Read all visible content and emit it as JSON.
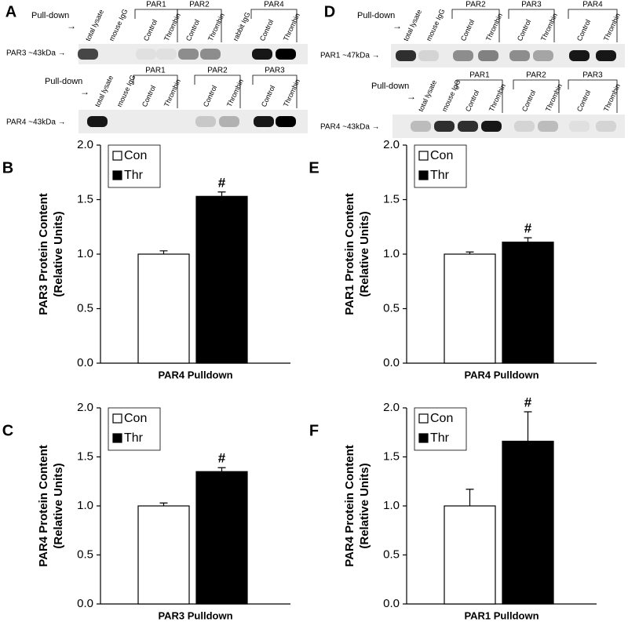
{
  "blots": [
    {
      "label": "A",
      "rows": [
        {
          "pulldown": "Pull-down",
          "arrow": "→",
          "marker": "PAR3 ~43kDa →",
          "columns": [
            "total lysate",
            "mouse IgG",
            {
              "group": "PAR1",
              "lanes": [
                "Control",
                "Thrombin"
              ]
            },
            {
              "group": "PAR2",
              "lanes": [
                "Control",
                "Thrombin"
              ]
            },
            "rabbit IgG",
            {
              "group": "PAR4",
              "lanes": [
                "Control",
                "Thrombin"
              ]
            }
          ]
        },
        {
          "pulldown": "Pull-down",
          "arrow": "→",
          "marker": "PAR4 ~43kDa →",
          "columns": [
            "total lysate",
            "mouse IgG",
            {
              "group": "PAR1",
              "lanes": [
                "Control",
                "Thrombin"
              ]
            },
            {
              "group": "PAR2",
              "lanes": [
                "Control",
                "Thrombin"
              ]
            },
            {
              "group": "PAR3",
              "lanes": [
                "Control",
                "Thrombin"
              ]
            }
          ]
        }
      ]
    },
    {
      "label": "D",
      "rows": [
        {
          "pulldown": "Pull-down",
          "arrow": "→",
          "marker": "PAR1 ~47kDa →",
          "columns": [
            "total lysate",
            "mouse IgG",
            {
              "group": "PAR2",
              "lanes": [
                "Control",
                "Thrombin"
              ]
            },
            {
              "group": "PAR3",
              "lanes": [
                "Control",
                "Thrombin"
              ]
            },
            {
              "group": "PAR4",
              "lanes": [
                "Control",
                "Thrombin"
              ]
            }
          ]
        },
        {
          "pulldown": "Pull-down",
          "arrow": "→",
          "marker": "PAR4 ~43kDa →",
          "columns": [
            "total lysate",
            "mouse IgG",
            {
              "group": "PAR1",
              "lanes": [
                "Control",
                "Thrombin"
              ]
            },
            {
              "group": "PAR2",
              "lanes": [
                "Control",
                "Thrombin"
              ]
            },
            {
              "group": "PAR3",
              "lanes": [
                "Control",
                "Thrombin"
              ]
            }
          ]
        }
      ]
    }
  ],
  "chart_data": [
    {
      "type": "bar",
      "label": "B",
      "ylabel": [
        "PAR3 Protein Content",
        "(Relative Units)"
      ],
      "xlabel": "PAR4 Pulldown",
      "annotation": "#",
      "ylim": [
        0,
        2
      ],
      "yticks": [
        {
          "value": 0,
          "label": "0.0"
        },
        {
          "value": 0.5,
          "label": "0.5"
        },
        {
          "value": 1,
          "label": "1.0"
        },
        {
          "value": 1.5,
          "label": "1.5"
        },
        {
          "value": 2,
          "label": "2.0"
        }
      ],
      "series": [
        {
          "name": "Con",
          "color": "#ffffff",
          "values": [
            1.0
          ],
          "errors": [
            0.03
          ]
        },
        {
          "name": "Thr",
          "color": "#000000",
          "values": [
            1.53
          ],
          "errors": [
            0.04
          ]
        }
      ]
    },
    {
      "type": "bar",
      "label": "E",
      "ylabel": [
        "PAR1 Protein Content",
        "(Relative Units)"
      ],
      "xlabel": "PAR4 Pulldown",
      "annotation": "#",
      "ylim": [
        0,
        2
      ],
      "yticks": [
        {
          "value": 0,
          "label": "0.0"
        },
        {
          "value": 0.5,
          "label": "0.5"
        },
        {
          "value": 1,
          "label": "1.0"
        },
        {
          "value": 1.5,
          "label": "1.5"
        },
        {
          "value": 2,
          "label": "2.0"
        }
      ],
      "series": [
        {
          "name": "Con",
          "color": "#ffffff",
          "values": [
            1.0
          ],
          "errors": [
            0.02
          ]
        },
        {
          "name": "Thr",
          "color": "#000000",
          "values": [
            1.11
          ],
          "errors": [
            0.04
          ]
        }
      ]
    },
    {
      "type": "bar",
      "label": "C",
      "ylabel": [
        "PAR4 Protein Content",
        "(Relative Units)"
      ],
      "xlabel": "PAR3 Pulldown",
      "annotation": "#",
      "ylim": [
        0,
        2
      ],
      "yticks": [
        {
          "value": 0,
          "label": "0.0"
        },
        {
          "value": 0.5,
          "label": "0.5"
        },
        {
          "value": 1,
          "label": "1.0"
        },
        {
          "value": 1.5,
          "label": "1.5"
        },
        {
          "value": 2,
          "label": "2.0"
        }
      ],
      "series": [
        {
          "name": "Con",
          "color": "#ffffff",
          "values": [
            1.0
          ],
          "errors": [
            0.03
          ]
        },
        {
          "name": "Thr",
          "color": "#000000",
          "values": [
            1.35
          ],
          "errors": [
            0.04
          ]
        }
      ]
    },
    {
      "type": "bar",
      "label": "F",
      "ylabel": [
        "PAR4 Protein Content",
        "(Relative Units)"
      ],
      "xlabel": "PAR1 Pulldown",
      "annotation": "#",
      "ylim": [
        0,
        2
      ],
      "yticks": [
        {
          "value": 0,
          "label": "0.0"
        },
        {
          "value": 0.5,
          "label": "0.5"
        },
        {
          "value": 1,
          "label": "1.0"
        },
        {
          "value": 1.5,
          "label": "1.5"
        },
        {
          "value": 2,
          "label": "2.0"
        }
      ],
      "series": [
        {
          "name": "Con",
          "color": "#ffffff",
          "values": [
            1.0
          ],
          "errors": [
            0.17
          ]
        },
        {
          "name": "Thr",
          "color": "#000000",
          "values": [
            1.66
          ],
          "errors": [
            0.3
          ]
        }
      ]
    }
  ]
}
